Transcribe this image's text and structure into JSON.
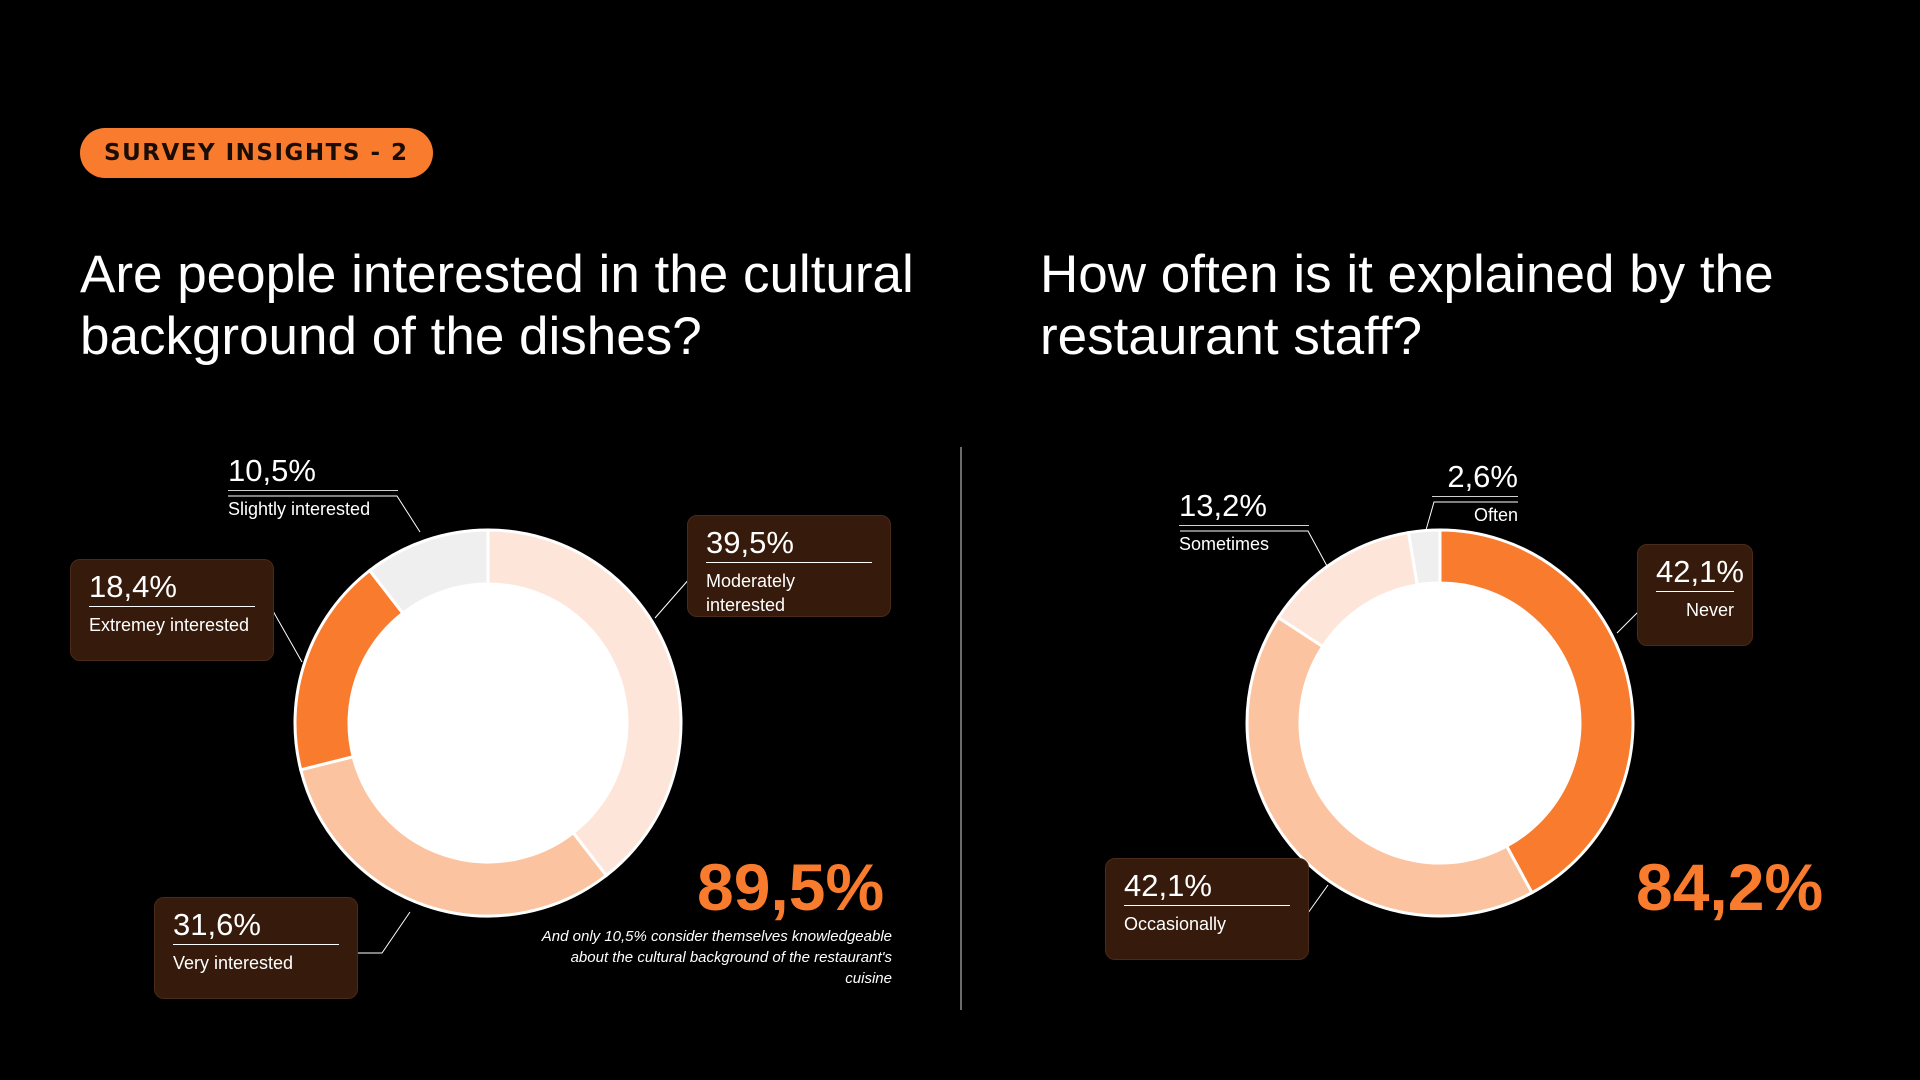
{
  "tag": "SURVEY INSIGHTS - 2",
  "left": {
    "question": "Are people interested in the cultural background of the dishes?",
    "highlight": "89,5%",
    "note": "And only 10,5% consider themselves knowledgeable about the cultural background of the restaurant's cuisine"
  },
  "right": {
    "question": "How often is it explained by the restaurant staff?",
    "highlight": "84,2%"
  },
  "chart_data": [
    {
      "type": "pie",
      "title": "Are people interested in the cultural background of the dishes?",
      "categories": [
        "Moderately interested",
        "Very interested",
        "Extremey interested",
        "Slightly interested"
      ],
      "values": [
        39.5,
        31.6,
        18.4,
        10.5
      ],
      "value_labels": [
        "39,5%",
        "31,6%",
        "18,4%",
        "10,5%"
      ],
      "colors": [
        "#FDE5D9",
        "#FCC3A0",
        "#F97B2E",
        "#EFEFEF"
      ]
    },
    {
      "type": "pie",
      "title": "How often is it explained by the restaurant staff?",
      "categories": [
        "Never",
        "Occasionally",
        "Sometimes",
        "Often"
      ],
      "values": [
        42.1,
        42.1,
        13.2,
        2.6
      ],
      "value_labels": [
        "42,1%",
        "42,1%",
        "13,2%",
        "2,6%"
      ],
      "colors": [
        "#F97B2E",
        "#FCC3A0",
        "#FDE5D9",
        "#EFEFEF"
      ]
    }
  ]
}
